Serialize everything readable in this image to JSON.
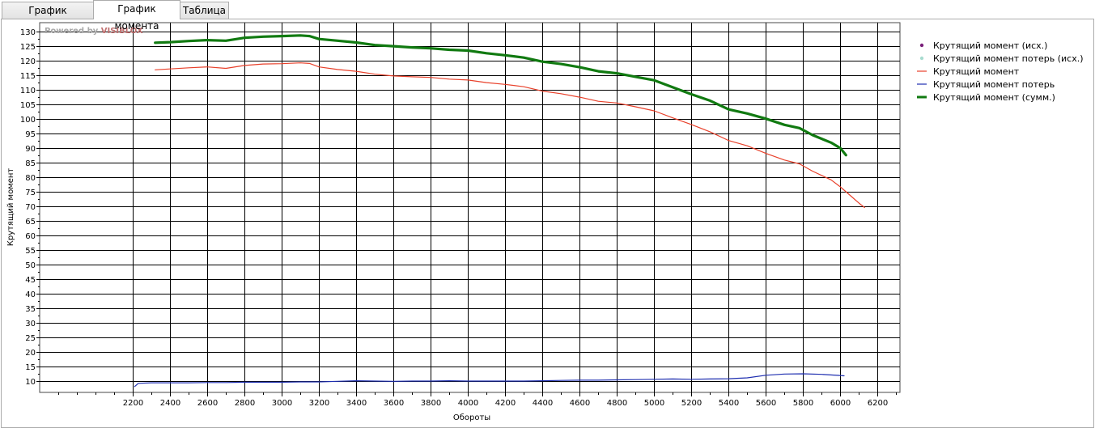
{
  "tabs": [
    {
      "label": "График мощности",
      "active": false
    },
    {
      "label": "График момента",
      "active": true
    },
    {
      "label": "Таблица",
      "active": false
    }
  ],
  "watermark": {
    "prefix": "Powered by ",
    "brand": "VISIBLOX"
  },
  "chart_data": {
    "type": "line",
    "xlabel": "Обороты",
    "ylabel": "Крутящий момент",
    "xlim": [
      1700,
      6320
    ],
    "ylim": [
      6,
      133
    ],
    "xticks": [
      2200,
      2400,
      2600,
      2800,
      3000,
      3200,
      3400,
      3600,
      3800,
      4000,
      4200,
      4400,
      4600,
      4800,
      5000,
      5200,
      5400,
      5600,
      5800,
      6000,
      6200
    ],
    "yticks": [
      10,
      15,
      20,
      25,
      30,
      35,
      40,
      45,
      50,
      55,
      60,
      65,
      70,
      75,
      80,
      85,
      90,
      95,
      100,
      105,
      110,
      115,
      120,
      125,
      130
    ],
    "grid": true,
    "legend_position": "right",
    "legend": [
      {
        "name": "Крутящий момент (исх.)",
        "marker": "dot",
        "color": "#7a1f7a"
      },
      {
        "name": "Крутящий момент потерь (исх.)",
        "marker": "dot",
        "color": "#a8dcd0"
      },
      {
        "name": "Крутящий момент",
        "marker": "line",
        "color": "#e8402a"
      },
      {
        "name": "Крутящий момент потерь",
        "marker": "line",
        "color": "#1f2fb0"
      },
      {
        "name": "Крутящий момент (сумм.)",
        "marker": "thickline",
        "color": "#117a11"
      }
    ],
    "series": [
      {
        "name": "Крутящий момент",
        "color": "#e8402a",
        "width": 1.2,
        "x": [
          2320,
          2400,
          2500,
          2600,
          2700,
          2800,
          2900,
          3000,
          3100,
          3150,
          3200,
          3300,
          3400,
          3500,
          3600,
          3700,
          3800,
          3900,
          4000,
          4100,
          4200,
          4300,
          4400,
          4500,
          4600,
          4700,
          4800,
          4900,
          5000,
          5100,
          5200,
          5300,
          5400,
          5500,
          5600,
          5700,
          5780,
          5850,
          5950,
          6000,
          6050,
          6100,
          6130
        ],
        "y": [
          116.8,
          117.1,
          117.5,
          117.8,
          117.3,
          118.3,
          118.8,
          118.9,
          119.2,
          119.0,
          117.8,
          116.9,
          116.3,
          115.3,
          114.7,
          114.4,
          114.2,
          113.6,
          113.3,
          112.4,
          111.8,
          111.0,
          109.5,
          108.6,
          107.4,
          106.0,
          105.4,
          104.1,
          102.7,
          100.3,
          98.0,
          95.5,
          92.5,
          90.7,
          88.1,
          85.8,
          84.5,
          82.0,
          79.0,
          76.6,
          73.8,
          71.0,
          69.5
        ]
      },
      {
        "name": "Крутящий момент потерь",
        "color": "#1f2fb0",
        "width": 1.2,
        "x": [
          2210,
          2230,
          2300,
          2400,
          2500,
          2600,
          2700,
          2800,
          2900,
          3000,
          3100,
          3200,
          3300,
          3400,
          3500,
          3600,
          3700,
          3800,
          3900,
          4000,
          4100,
          4200,
          4300,
          4400,
          4500,
          4600,
          4700,
          4800,
          4900,
          5000,
          5100,
          5200,
          5300,
          5400,
          5500,
          5600,
          5700,
          5800,
          5900,
          6000,
          6020
        ],
        "y": [
          8.0,
          9.1,
          9.3,
          9.3,
          9.3,
          9.4,
          9.4,
          9.5,
          9.5,
          9.5,
          9.6,
          9.6,
          9.8,
          10.0,
          9.9,
          9.8,
          9.9,
          9.9,
          10.0,
          9.9,
          9.9,
          9.9,
          9.9,
          10.0,
          10.1,
          10.2,
          10.2,
          10.3,
          10.4,
          10.5,
          10.6,
          10.5,
          10.6,
          10.7,
          11.0,
          11.9,
          12.3,
          12.4,
          12.2,
          11.8,
          11.7
        ]
      },
      {
        "name": "Крутящий момент (сумм.)",
        "color": "#117a11",
        "width": 3.2,
        "x": [
          2320,
          2400,
          2500,
          2600,
          2700,
          2800,
          2900,
          3000,
          3100,
          3150,
          3200,
          3300,
          3400,
          3500,
          3600,
          3700,
          3800,
          3900,
          4000,
          4100,
          4200,
          4300,
          4400,
          4500,
          4600,
          4700,
          4800,
          4900,
          5000,
          5100,
          5200,
          5300,
          5400,
          5500,
          5600,
          5700,
          5780,
          5850,
          5950,
          6000,
          6030
        ],
        "y": [
          126.1,
          126.3,
          126.7,
          127.0,
          126.8,
          127.8,
          128.2,
          128.4,
          128.6,
          128.4,
          127.4,
          126.8,
          126.2,
          125.3,
          124.9,
          124.5,
          124.2,
          123.7,
          123.4,
          122.5,
          121.8,
          121.0,
          119.6,
          118.8,
          117.7,
          116.3,
          115.6,
          114.4,
          113.2,
          110.8,
          108.4,
          106.2,
          103.2,
          101.8,
          100.0,
          97.9,
          96.8,
          94.4,
          91.8,
          89.9,
          87.5
        ]
      }
    ]
  }
}
